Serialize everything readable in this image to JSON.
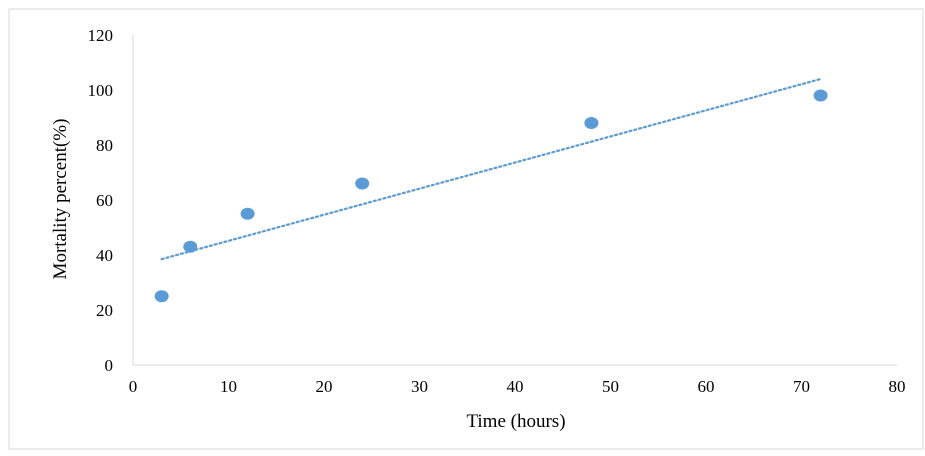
{
  "chart_data": {
    "type": "scatter",
    "title": "",
    "xlabel": "Time (hours)",
    "ylabel": "Mortality percent(%)",
    "xlim": [
      0,
      80
    ],
    "ylim": [
      0,
      120
    ],
    "x_ticks": [
      0,
      10,
      20,
      30,
      40,
      50,
      60,
      70,
      80
    ],
    "y_ticks": [
      0,
      20,
      40,
      60,
      80,
      100,
      120
    ],
    "grid": false,
    "legend": "none",
    "series": [
      {
        "x": [
          3,
          6,
          12,
          24,
          48,
          72
        ],
        "y": [
          25,
          43,
          55,
          66,
          88,
          98
        ],
        "color": "#5b9bd5",
        "marker": "circle"
      }
    ],
    "trendline": {
      "type": "linear",
      "style": "dotted",
      "color": "#5b9bd5",
      "x_range": [
        3,
        72
      ],
      "y_range": [
        38.5,
        104
      ]
    }
  }
}
